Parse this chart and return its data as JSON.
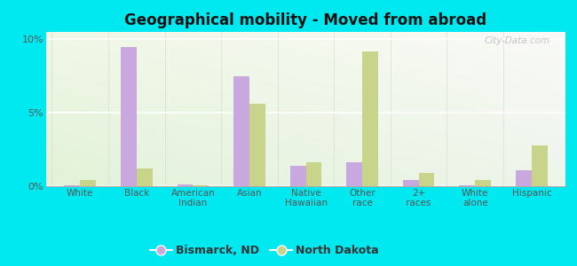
{
  "title": "Geographical mobility - Moved from abroad",
  "categories": [
    "White",
    "Black",
    "American\nIndian",
    "Asian",
    "Native\nHawaiian",
    "Other\nrace",
    "2+\nraces",
    "White\nalone",
    "Hispanic"
  ],
  "bismarck_values": [
    0.05,
    9.5,
    0.12,
    7.5,
    1.4,
    1.6,
    0.45,
    0.08,
    1.1
  ],
  "nd_values": [
    0.45,
    1.2,
    0.05,
    5.6,
    1.65,
    9.2,
    0.9,
    0.4,
    2.8
  ],
  "bismarck_color": "#c9a8e0",
  "nd_color": "#c8d48a",
  "ylim": [
    0,
    10.5
  ],
  "yticks": [
    0,
    5,
    10
  ],
  "ytick_labels": [
    "0%",
    "5%",
    "10%"
  ],
  "bg_outer": "#00e8f0",
  "legend_bismarck": "Bismarck, ND",
  "legend_nd": "North Dakota",
  "watermark": "City-Data.com"
}
